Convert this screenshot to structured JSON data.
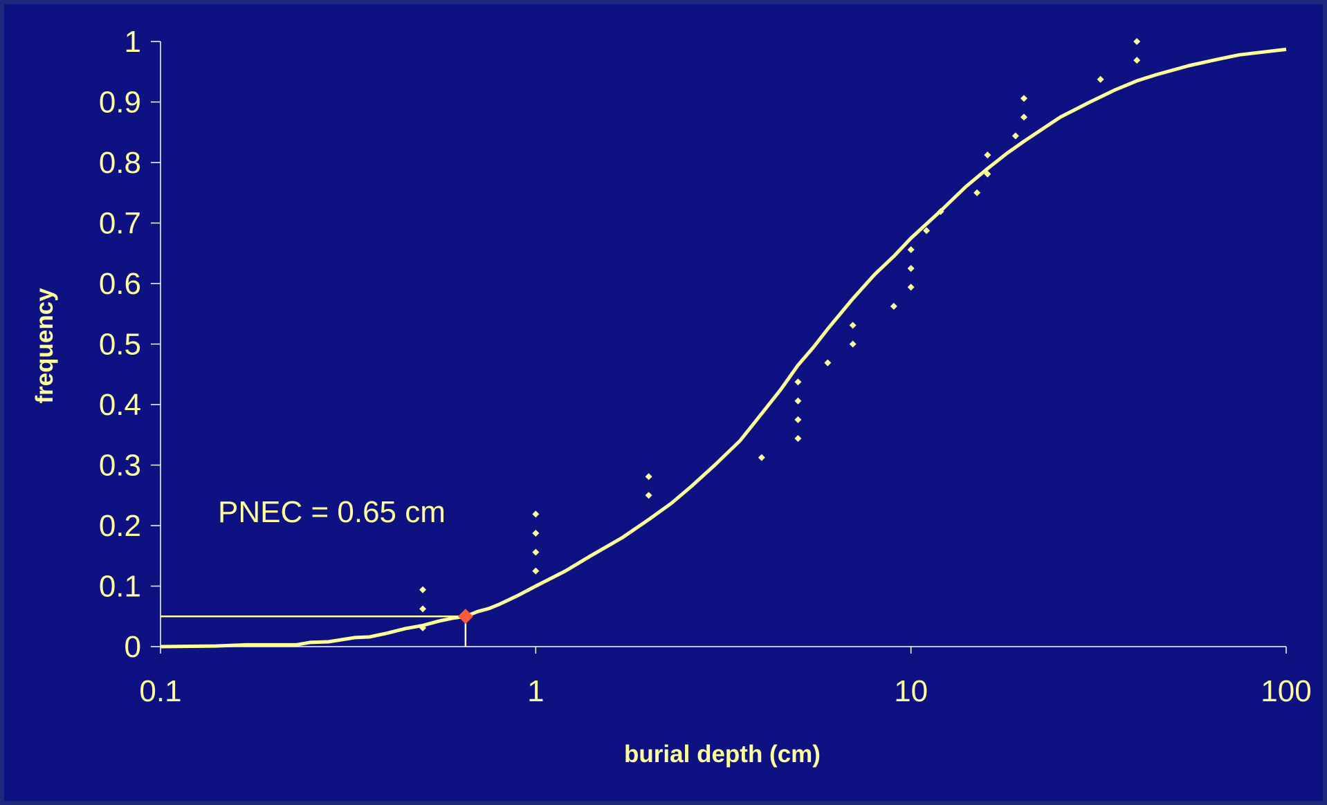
{
  "chart_data": {
    "type": "scatter",
    "xlabel": "burial depth (cm)",
    "ylabel": "frequency",
    "x_scale": "log",
    "xlim": [
      0.1,
      100
    ],
    "ylim": [
      0,
      1
    ],
    "x_ticks": [
      "0.1",
      "1",
      "10",
      "100"
    ],
    "y_ticks": [
      "0",
      "0.1",
      "0.2",
      "0.3",
      "0.4",
      "0.5",
      "0.6",
      "0.7",
      "0.8",
      "0.9",
      "1"
    ],
    "grid": false,
    "legend": "none",
    "annotation": "PNEC = 0.65 cm",
    "pnec": {
      "x": 0.65,
      "y": 0.05
    },
    "series": [
      {
        "kind": "scatter",
        "points": [
          [
            0.5,
            0.031
          ],
          [
            0.5,
            0.0625
          ],
          [
            0.5,
            0.094
          ],
          [
            1,
            0.125
          ],
          [
            1,
            0.156
          ],
          [
            1,
            0.1875
          ],
          [
            1,
            0.219
          ],
          [
            2,
            0.25
          ],
          [
            2,
            0.281
          ],
          [
            4,
            0.3125
          ],
          [
            5,
            0.344
          ],
          [
            5,
            0.375
          ],
          [
            5,
            0.406
          ],
          [
            5,
            0.4375
          ],
          [
            6,
            0.469
          ],
          [
            7,
            0.5
          ],
          [
            7,
            0.531
          ],
          [
            9,
            0.5625
          ],
          [
            10,
            0.594
          ],
          [
            10,
            0.625
          ],
          [
            10,
            0.656
          ],
          [
            11,
            0.6875
          ],
          [
            12,
            0.719
          ],
          [
            15,
            0.75
          ],
          [
            16,
            0.781
          ],
          [
            16,
            0.8125
          ],
          [
            19,
            0.844
          ],
          [
            20,
            0.875
          ],
          [
            20,
            0.906
          ],
          [
            32,
            0.9375
          ],
          [
            40,
            0.969
          ],
          [
            40,
            1.0
          ]
        ]
      },
      {
        "kind": "line",
        "points": [
          [
            0.1,
            0.0
          ],
          [
            0.14,
            0.001
          ],
          [
            0.17,
            0.003
          ],
          [
            0.23,
            0.003
          ],
          [
            0.25,
            0.007
          ],
          [
            0.28,
            0.008
          ],
          [
            0.33,
            0.015
          ],
          [
            0.36,
            0.016
          ],
          [
            0.4,
            0.022
          ],
          [
            0.45,
            0.03
          ],
          [
            0.5,
            0.035
          ],
          [
            0.55,
            0.042
          ],
          [
            0.6,
            0.047
          ],
          [
            0.65,
            0.05
          ],
          [
            0.7,
            0.058
          ],
          [
            0.75,
            0.063
          ],
          [
            0.8,
            0.07
          ],
          [
            0.9,
            0.085
          ],
          [
            1.0,
            0.1
          ],
          [
            1.2,
            0.125
          ],
          [
            1.4,
            0.15
          ],
          [
            1.7,
            0.18
          ],
          [
            2.0,
            0.21
          ],
          [
            2.3,
            0.237
          ],
          [
            2.6,
            0.265
          ],
          [
            3.0,
            0.3
          ],
          [
            3.5,
            0.34
          ],
          [
            4.0,
            0.385
          ],
          [
            4.5,
            0.425
          ],
          [
            5.0,
            0.465
          ],
          [
            5.5,
            0.495
          ],
          [
            6.0,
            0.525
          ],
          [
            7.0,
            0.575
          ],
          [
            8.0,
            0.615
          ],
          [
            9.0,
            0.645
          ],
          [
            10,
            0.675
          ],
          [
            12,
            0.72
          ],
          [
            14,
            0.76
          ],
          [
            16,
            0.79
          ],
          [
            18,
            0.815
          ],
          [
            20,
            0.835
          ],
          [
            25,
            0.875
          ],
          [
            30,
            0.9
          ],
          [
            35,
            0.92
          ],
          [
            40,
            0.935
          ],
          [
            45,
            0.945
          ],
          [
            55,
            0.96
          ],
          [
            65,
            0.97
          ],
          [
            75,
            0.978
          ],
          [
            85,
            0.982
          ],
          [
            100,
            0.987
          ]
        ]
      }
    ],
    "colors": {
      "background": "#0f1380",
      "text": "#ffff9c",
      "axis": "#ffffff",
      "marker": "#ff5a3c"
    }
  }
}
